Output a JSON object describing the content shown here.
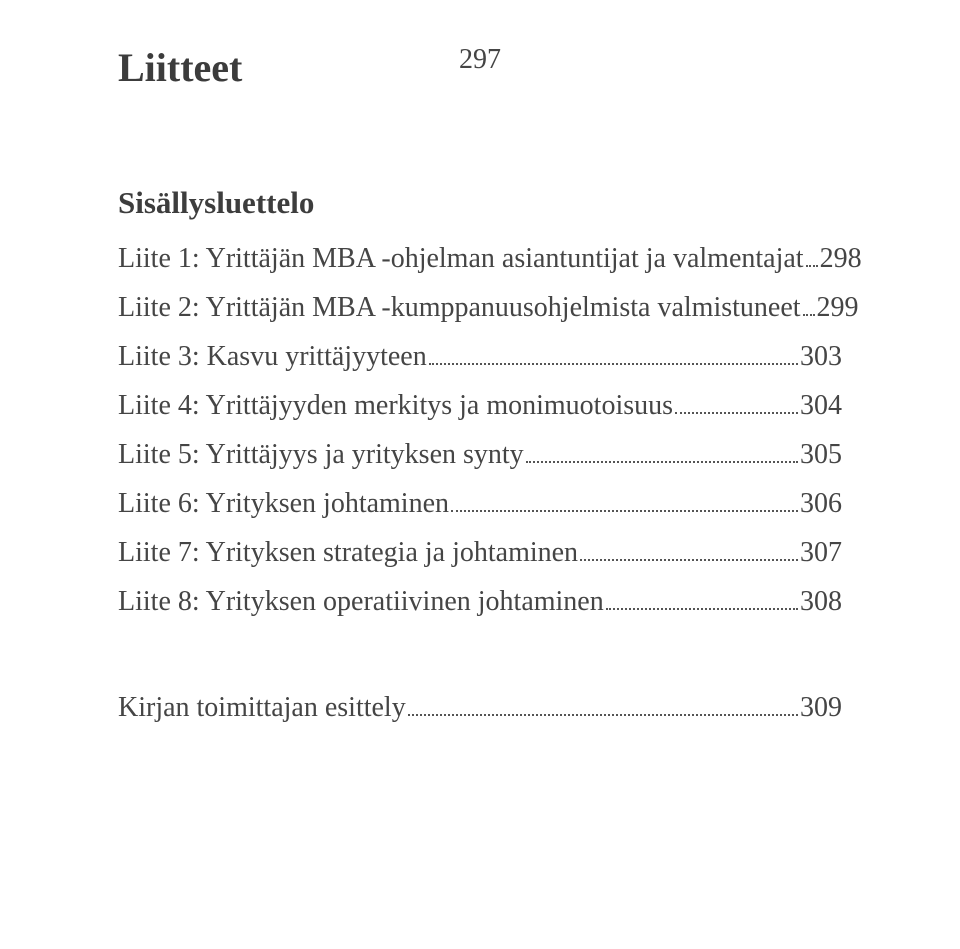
{
  "page_number": "297",
  "section_title": "Liitteet",
  "subsection_title": "Sisällysluettelo",
  "toc": {
    "items": [
      {
        "label": "Liite 1: Yrittäjän MBA -ohjelman asiantuntijat ja valmentajat",
        "page": "298"
      },
      {
        "label": "Liite 2: Yrittäjän MBA -kumppanuusohjelmista valmistuneet",
        "page": "299"
      },
      {
        "label": "Liite 3: Kasvu yrittäjyyteen",
        "page": "303"
      },
      {
        "label": "Liite 4: Yrittäjyyden merkitys ja monimuotoisuus",
        "page": "304"
      },
      {
        "label": "Liite 5: Yrittäjyys ja yrityksen synty",
        "page": "305"
      },
      {
        "label": "Liite 6: Yrityksen johtaminen",
        "page": "306"
      },
      {
        "label": "Liite 7: Yrityksen strategia ja johtaminen",
        "page": "307"
      },
      {
        "label": "Liite 8: Yrityksen operatiivinen johtaminen",
        "page": "308"
      }
    ]
  },
  "final_line": {
    "label": "Kirjan toimittajan esittely",
    "page": "309"
  },
  "colors": {
    "background": "#ffffff",
    "text": "#454545",
    "leader": "#555555"
  },
  "typography": {
    "body_font": "Times New Roman",
    "page_number_fontsize": 28,
    "section_title_fontsize": 40,
    "subsection_title_fontsize": 31,
    "toc_fontsize": 28
  }
}
